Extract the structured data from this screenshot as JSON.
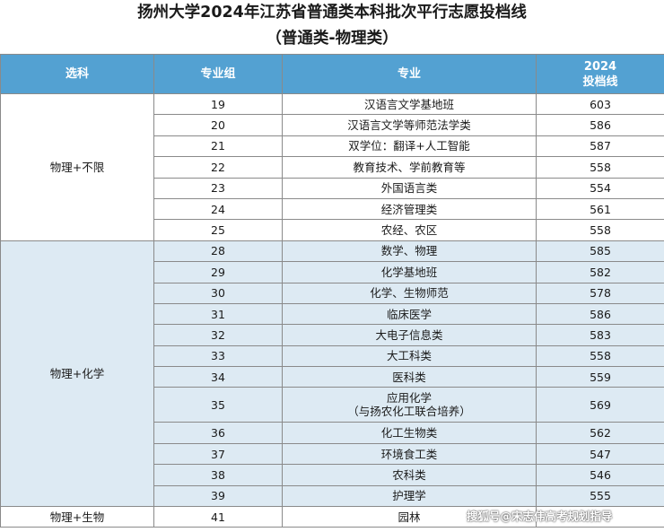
{
  "title": {
    "line1": "扬州大学2024年江苏省普通类本科批次平行志愿投档线",
    "line2": "（普通类-物理类）"
  },
  "header": {
    "subject": "选科",
    "group": "专业组",
    "major": "专业",
    "score_line1": "2024",
    "score_line2": "投档线"
  },
  "groups": [
    {
      "subject": "物理+不限",
      "rows": [
        {
          "group": "19",
          "major": [
            "汉语言文学基地班"
          ],
          "score": "603"
        },
        {
          "group": "20",
          "major": [
            "汉语言文学等师范法学类"
          ],
          "score": "586"
        },
        {
          "group": "21",
          "major": [
            "双学位：翻译+人工智能"
          ],
          "score": "587"
        },
        {
          "group": "22",
          "major": [
            "教育技术、学前教育等"
          ],
          "score": "558"
        },
        {
          "group": "23",
          "major": [
            "外国语言类"
          ],
          "score": "554"
        },
        {
          "group": "24",
          "major": [
            "经济管理类"
          ],
          "score": "561"
        },
        {
          "group": "25",
          "major": [
            "农经、农区"
          ],
          "score": "558"
        }
      ]
    },
    {
      "subject": "物理+化学",
      "rows": [
        {
          "group": "28",
          "major": [
            "数学、物理"
          ],
          "score": "585"
        },
        {
          "group": "29",
          "major": [
            "化学基地班"
          ],
          "score": "582"
        },
        {
          "group": "30",
          "major": [
            "化学、生物师范"
          ],
          "score": "578"
        },
        {
          "group": "31",
          "major": [
            "临床医学"
          ],
          "score": "586"
        },
        {
          "group": "32",
          "major": [
            "大电子信息类"
          ],
          "score": "583"
        },
        {
          "group": "33",
          "major": [
            "大工科类"
          ],
          "score": "558"
        },
        {
          "group": "34",
          "major": [
            "医科类"
          ],
          "score": "559"
        },
        {
          "group": "35",
          "major": [
            "应用化学",
            "（与扬农化工联合培养）"
          ],
          "score": "569"
        },
        {
          "group": "36",
          "major": [
            "化工生物类"
          ],
          "score": "562"
        },
        {
          "group": "37",
          "major": [
            "环境食工类"
          ],
          "score": "547"
        },
        {
          "group": "38",
          "major": [
            "农科类"
          ],
          "score": "546"
        },
        {
          "group": "39",
          "major": [
            "护理学"
          ],
          "score": "555"
        }
      ]
    },
    {
      "subject": "物理+生物",
      "rows": [
        {
          "group": "41",
          "major": [
            "园林"
          ],
          "score": ""
        }
      ]
    }
  ],
  "watermark": "搜狐号@宋志伟高考规划指导"
}
